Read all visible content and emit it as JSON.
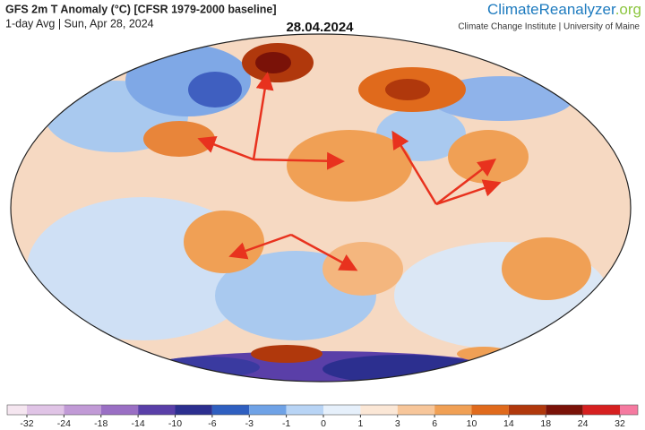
{
  "header": {
    "title": "GFS 2m T Anomaly (°C) [CFSR 1979-2000 baseline]",
    "subtitle": "1-day Avg | Sun, Apr 28, 2024",
    "date": "28.04.2024"
  },
  "brand": {
    "name": "ClimateReanalyzer",
    "domain": ".org",
    "institute": "Climate Change Institute | University of Maine"
  },
  "legend": {
    "ticks": [
      -32,
      -24,
      -18,
      -14,
      -10,
      -6,
      -3,
      -1,
      0,
      1,
      3,
      6,
      10,
      14,
      18,
      24,
      32
    ],
    "colors": [
      "#f5e6f0",
      "#e0c4e6",
      "#c19ad6",
      "#9a6fc4",
      "#5a3fa8",
      "#2c2f8f",
      "#2f5fc0",
      "#6fa2e6",
      "#b8d4f5",
      "#e6f0fb",
      "#fbe7d6",
      "#f7c69a",
      "#f0a055",
      "#e06a1c",
      "#b0380c",
      "#7a1208",
      "#d62020",
      "#f57aa0"
    ]
  }
}
